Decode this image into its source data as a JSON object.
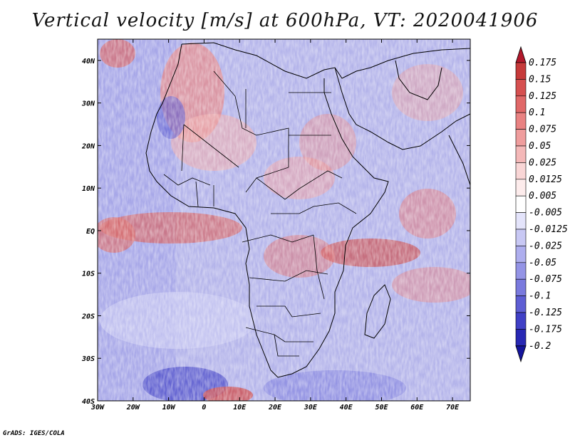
{
  "title": "Vertical velocity [m/s] at 600hPa, VT: 2020041906",
  "credit": "GrADS: IGES/COLA",
  "map": {
    "lon_ticks": [
      "30W",
      "20W",
      "10W",
      "0",
      "10E",
      "20E",
      "30E",
      "40E",
      "50E",
      "60E",
      "70E"
    ],
    "lat_ticks": [
      "40N",
      "30N",
      "20N",
      "10N",
      "EQ",
      "10S",
      "20S",
      "30S",
      "40S"
    ],
    "lon_range": [
      -30,
      75
    ],
    "lat_range": [
      -40,
      45
    ]
  },
  "colorbar": {
    "labels": [
      "0.175",
      "0.15",
      "0.125",
      "0.1",
      "0.075",
      "0.05",
      "0.025",
      "0.0125",
      "0.005",
      "-0.005",
      "-0.0125",
      "-0.025",
      "-0.05",
      "-0.075",
      "-0.1",
      "-0.125",
      "-0.175",
      "-0.2"
    ],
    "colors": [
      "#b2182b",
      "#c63a3a",
      "#d65050",
      "#e06868",
      "#e98282",
      "#ef9d9d",
      "#f4b8b8",
      "#f9d6d6",
      "#fdecec",
      "#ffffff",
      "#e4e4fb",
      "#c8c8f4",
      "#aeaeee",
      "#9494e6",
      "#7a7ade",
      "#5e5ed4",
      "#4040c6",
      "#2828b4",
      "#14149c"
    ]
  }
}
